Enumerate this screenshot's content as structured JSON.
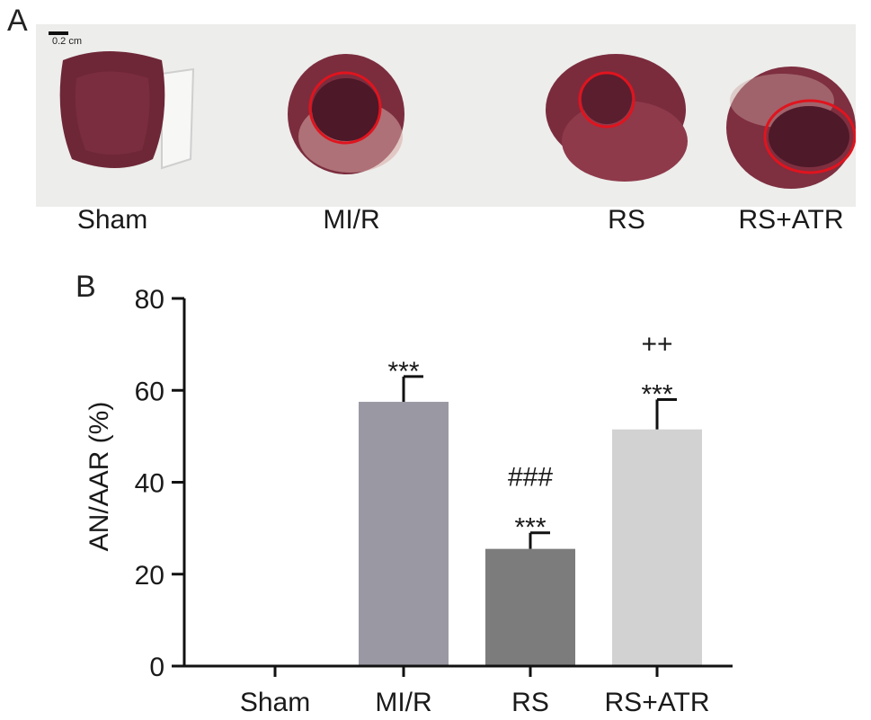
{
  "panel_a": {
    "letter": "A",
    "scale_bar": "0.2 cm",
    "labels": [
      "Sham",
      "MI/R",
      "RS",
      "RS+ATR"
    ]
  },
  "panel_b": {
    "letter": "B"
  },
  "colors": {
    "tissue": "#7a2b3c",
    "tissue_dark": "#4a1626",
    "infarct_circle": "#e0141e",
    "photo_bg": "#ededeb"
  },
  "chart_data": {
    "type": "bar",
    "categories": [
      "Sham",
      "MI/R",
      "RS",
      "RS+ATR"
    ],
    "values": [
      0,
      57.5,
      25.5,
      51.5
    ],
    "error_upper": [
      0,
      63,
      29,
      58
    ],
    "bar_colors": [
      "#ffffff",
      "#9a99a3",
      "#7c7c7c",
      "#d2d2d2"
    ],
    "annotations": [
      [],
      [
        "***"
      ],
      [
        "###",
        "***"
      ],
      [
        "++",
        "***"
      ]
    ],
    "ylabel": "AN/AAR (%)",
    "ylim": [
      0,
      80
    ],
    "yticks": [
      0,
      20,
      40,
      60,
      80
    ],
    "grid": false
  }
}
